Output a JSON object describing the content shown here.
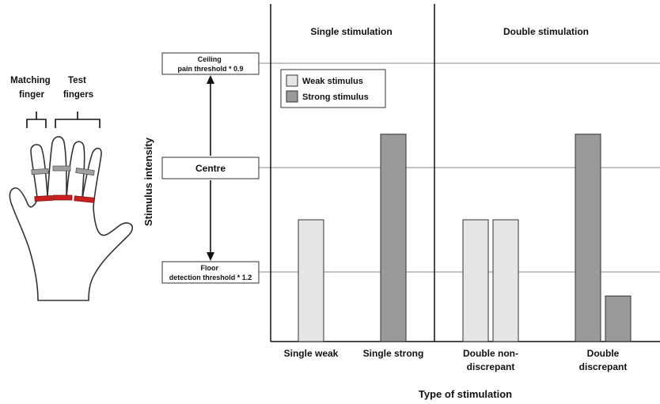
{
  "hand": {
    "matching_label": [
      "Matching",
      "finger"
    ],
    "test_label": [
      "Test",
      "fingers"
    ]
  },
  "levels": {
    "ceiling": [
      "Ceiling",
      "pain threshold * 0.9"
    ],
    "centre": "Centre",
    "floor": [
      "Floor",
      "detection threshold * 1.2"
    ]
  },
  "y_axis_label": "Stimulus intensity",
  "x_axis_label": "Type of stimulation",
  "panels": {
    "single": "Single stimulation",
    "double": "Double stimulation"
  },
  "legend": {
    "weak": "Weak stimulus",
    "strong": "Strong stimulus"
  },
  "colors": {
    "weak": "#e6e6e6",
    "strong": "#9a9a9a",
    "ring_red": "#cc1f1f",
    "ring_grey": "#a0a0a0"
  },
  "chart_data": {
    "type": "bar",
    "categories": [
      [
        "Single weak"
      ],
      [
        "Single strong"
      ],
      [
        "Double non-",
        "discrepant"
      ],
      [
        "Double",
        "discrepant"
      ]
    ],
    "scale_levels": {
      "floor": 0,
      "centre": 1,
      "ceiling": 2
    },
    "bars": [
      {
        "category": 0,
        "stimulus": "weak",
        "value": 0.5
      },
      {
        "category": 1,
        "stimulus": "strong",
        "value": 1.32
      },
      {
        "category": 2,
        "stimulus": "weak",
        "value": 0.5
      },
      {
        "category": 2,
        "stimulus": "weak",
        "value": 0.5
      },
      {
        "category": 3,
        "stimulus": "strong",
        "value": 1.32
      },
      {
        "category": 3,
        "stimulus": "strong",
        "value": -0.23
      }
    ]
  }
}
